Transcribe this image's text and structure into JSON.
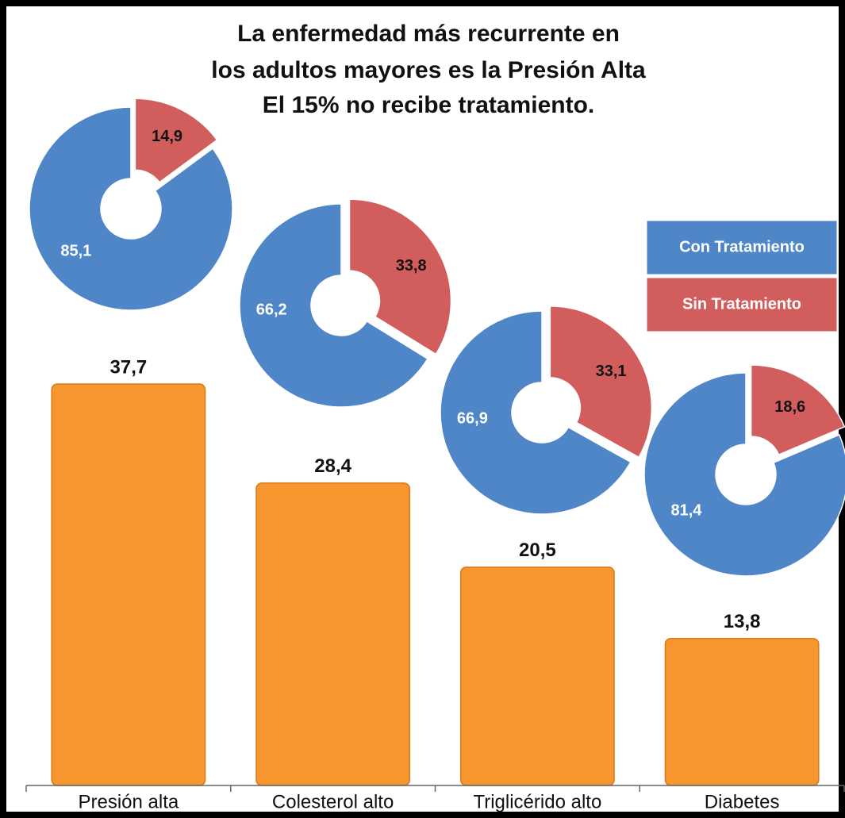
{
  "chart_data": [
    {
      "type": "bar",
      "title": [
        "La enfermedad más recurrente en",
        "los adultos mayores es la Presión Alta",
        "El 15% no recibe tratamiento."
      ],
      "categories": [
        "Presión alta",
        "Colesterol alto",
        "Triglicérido alto",
        "Diabetes"
      ],
      "values": [
        37.7,
        28.4,
        20.5,
        13.8
      ],
      "value_labels": [
        "37,7",
        "28,4",
        "20,5",
        "13,8"
      ],
      "color": "#f7962e",
      "ylim": [
        0,
        38
      ]
    },
    {
      "type": "donut",
      "series": [
        {
          "name": "Con Tratamiento",
          "color": "#4f86c8",
          "values": [
            85.1,
            66.2,
            66.9,
            81.4
          ],
          "value_labels": [
            "85,1",
            "66,2",
            "66,9",
            "81,4"
          ]
        },
        {
          "name": "Sin Tratamiento",
          "color": "#d25d5d",
          "values": [
            14.9,
            33.8,
            33.1,
            18.6
          ],
          "value_labels": [
            "14,9",
            "33,8",
            "33,1",
            "18,6"
          ]
        }
      ]
    }
  ]
}
